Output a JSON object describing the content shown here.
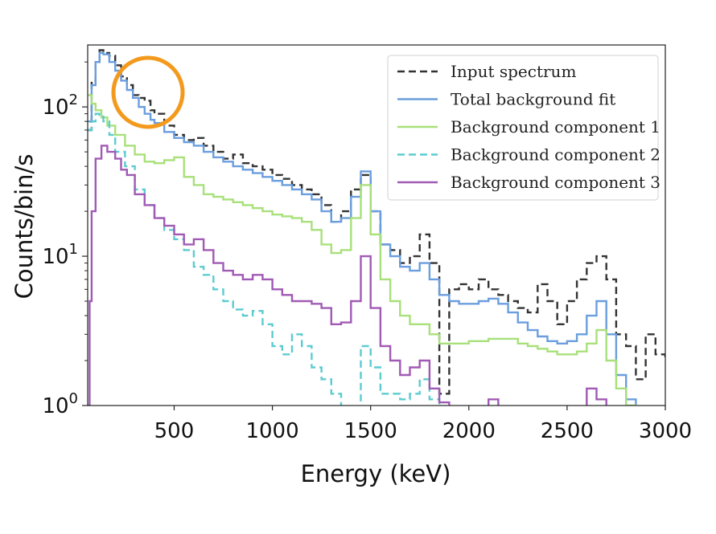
{
  "chart_data": {
    "type": "line",
    "title": "",
    "xlabel": "Energy (keV)",
    "ylabel": "Counts/bin/s",
    "xlim": [
      60,
      3000
    ],
    "ylim": [
      1,
      260
    ],
    "yscale": "log",
    "grid": false,
    "legend_placement": "top-right",
    "x_ticks": [
      500,
      1000,
      1500,
      2000,
      2500,
      3000
    ],
    "x_tick_labels": [
      "500",
      "1000",
      "1500",
      "2000",
      "2500",
      "3000"
    ],
    "y_ticks": [
      1,
      10,
      100
    ],
    "y_tick_labels": [
      {
        "base": "10",
        "exp": "0"
      },
      {
        "base": "10",
        "exp": "1"
      },
      {
        "base": "10",
        "exp": "2"
      }
    ],
    "annotation": {
      "type": "circle",
      "color": "#f39a1d",
      "marks_x_range": [
        250,
        400
      ]
    },
    "series": [
      {
        "name": "Input spectrum",
        "color": "#333333",
        "dash": "dashed",
        "points": [
          [
            60,
            70
          ],
          [
            80,
            150
          ],
          [
            100,
            200
          ],
          [
            120,
            240
          ],
          [
            140,
            230
          ],
          [
            170,
            220
          ],
          [
            200,
            190
          ],
          [
            230,
            160
          ],
          [
            260,
            140
          ],
          [
            290,
            120
          ],
          [
            320,
            115
          ],
          [
            350,
            110
          ],
          [
            380,
            95
          ],
          [
            400,
            90
          ],
          [
            450,
            75
          ],
          [
            500,
            65
          ],
          [
            550,
            60
          ],
          [
            600,
            62
          ],
          [
            650,
            55
          ],
          [
            700,
            50
          ],
          [
            750,
            45
          ],
          [
            800,
            48
          ],
          [
            850,
            42
          ],
          [
            900,
            40
          ],
          [
            950,
            38
          ],
          [
            1000,
            35
          ],
          [
            1050,
            33
          ],
          [
            1100,
            30
          ],
          [
            1150,
            28
          ],
          [
            1200,
            26
          ],
          [
            1250,
            22
          ],
          [
            1300,
            17
          ],
          [
            1350,
            20
          ],
          [
            1400,
            28
          ],
          [
            1450,
            35
          ],
          [
            1500,
            20
          ],
          [
            1550,
            12
          ],
          [
            1600,
            11
          ],
          [
            1650,
            9
          ],
          [
            1700,
            10
          ],
          [
            1750,
            14
          ],
          [
            1800,
            9
          ],
          [
            1850,
            1.2
          ],
          [
            1900,
            6
          ],
          [
            1950,
            6.5
          ],
          [
            2000,
            6
          ],
          [
            2050,
            7
          ],
          [
            2100,
            6
          ],
          [
            2150,
            5.5
          ],
          [
            2200,
            5
          ],
          [
            2250,
            4.5
          ],
          [
            2300,
            4.2
          ],
          [
            2350,
            6.5
          ],
          [
            2400,
            5
          ],
          [
            2450,
            3.5
          ],
          [
            2500,
            5
          ],
          [
            2550,
            7
          ],
          [
            2600,
            9
          ],
          [
            2650,
            10
          ],
          [
            2700,
            7
          ],
          [
            2750,
            3
          ],
          [
            2800,
            2.5
          ],
          [
            2850,
            1.5
          ],
          [
            2900,
            3
          ],
          [
            2950,
            2.2
          ],
          [
            3000,
            2
          ]
        ]
      },
      {
        "name": "Total background fit",
        "color": "#6a9ede",
        "dash": "solid",
        "points": [
          [
            60,
            80
          ],
          [
            80,
            140
          ],
          [
            100,
            200
          ],
          [
            120,
            230
          ],
          [
            140,
            225
          ],
          [
            170,
            200
          ],
          [
            200,
            175
          ],
          [
            230,
            150
          ],
          [
            260,
            130
          ],
          [
            290,
            115
          ],
          [
            320,
            100
          ],
          [
            350,
            90
          ],
          [
            380,
            82
          ],
          [
            400,
            78
          ],
          [
            450,
            68
          ],
          [
            500,
            62
          ],
          [
            550,
            58
          ],
          [
            600,
            55
          ],
          [
            650,
            50
          ],
          [
            700,
            46
          ],
          [
            750,
            43
          ],
          [
            800,
            40
          ],
          [
            850,
            38
          ],
          [
            900,
            36
          ],
          [
            950,
            34
          ],
          [
            1000,
            32
          ],
          [
            1050,
            30
          ],
          [
            1100,
            28
          ],
          [
            1150,
            26
          ],
          [
            1200,
            24
          ],
          [
            1250,
            20
          ],
          [
            1300,
            17
          ],
          [
            1350,
            18
          ],
          [
            1400,
            25
          ],
          [
            1450,
            37
          ],
          [
            1500,
            20
          ],
          [
            1550,
            12
          ],
          [
            1600,
            10
          ],
          [
            1650,
            8.5
          ],
          [
            1700,
            8
          ],
          [
            1750,
            9
          ],
          [
            1800,
            7
          ],
          [
            1850,
            5.5
          ],
          [
            1900,
            5
          ],
          [
            1950,
            4.8
          ],
          [
            2000,
            4.8
          ],
          [
            2050,
            5
          ],
          [
            2100,
            5.2
          ],
          [
            2150,
            4.8
          ],
          [
            2200,
            4.2
          ],
          [
            2250,
            3.6
          ],
          [
            2300,
            3.2
          ],
          [
            2350,
            2.9
          ],
          [
            2400,
            2.7
          ],
          [
            2450,
            2.6
          ],
          [
            2500,
            2.7
          ],
          [
            2550,
            3
          ],
          [
            2600,
            4
          ],
          [
            2650,
            5
          ],
          [
            2700,
            3
          ],
          [
            2750,
            1.6
          ],
          [
            2800,
            1.1
          ],
          [
            2850,
            0.95
          ]
        ]
      },
      {
        "name": "Background component 1",
        "color": "#a8e07a",
        "dash": "solid",
        "points": [
          [
            60,
            120
          ],
          [
            80,
            105
          ],
          [
            100,
            95
          ],
          [
            130,
            85
          ],
          [
            160,
            75
          ],
          [
            200,
            65
          ],
          [
            250,
            55
          ],
          [
            300,
            48
          ],
          [
            350,
            43
          ],
          [
            400,
            42
          ],
          [
            450,
            44
          ],
          [
            500,
            46
          ],
          [
            550,
            34
          ],
          [
            600,
            30
          ],
          [
            650,
            26
          ],
          [
            700,
            25
          ],
          [
            750,
            24
          ],
          [
            800,
            23
          ],
          [
            850,
            22
          ],
          [
            900,
            21
          ],
          [
            950,
            20
          ],
          [
            1000,
            19
          ],
          [
            1050,
            18.5
          ],
          [
            1100,
            18
          ],
          [
            1150,
            17
          ],
          [
            1200,
            15
          ],
          [
            1250,
            12
          ],
          [
            1300,
            10.5
          ],
          [
            1350,
            11
          ],
          [
            1400,
            18
          ],
          [
            1450,
            30
          ],
          [
            1500,
            14
          ],
          [
            1550,
            7
          ],
          [
            1600,
            5
          ],
          [
            1650,
            4
          ],
          [
            1700,
            3.5
          ],
          [
            1750,
            3.5
          ],
          [
            1800,
            3
          ],
          [
            1850,
            2.6
          ],
          [
            1900,
            2.6
          ],
          [
            1950,
            2.6
          ],
          [
            2000,
            2.7
          ],
          [
            2050,
            2.7
          ],
          [
            2100,
            2.8
          ],
          [
            2150,
            2.8
          ],
          [
            2200,
            2.8
          ],
          [
            2250,
            2.6
          ],
          [
            2300,
            2.5
          ],
          [
            2350,
            2.4
          ],
          [
            2400,
            2.3
          ],
          [
            2450,
            2.2
          ],
          [
            2500,
            2.2
          ],
          [
            2550,
            2.3
          ],
          [
            2600,
            2.6
          ],
          [
            2650,
            3.2
          ],
          [
            2700,
            2
          ],
          [
            2750,
            1.3
          ],
          [
            2800,
            1
          ],
          [
            2850,
            0.9
          ]
        ]
      },
      {
        "name": "Background component 2",
        "color": "#5ccbd0",
        "dash": "dashed",
        "points": [
          [
            60,
            70
          ],
          [
            80,
            80
          ],
          [
            100,
            90
          ],
          [
            120,
            88
          ],
          [
            140,
            80
          ],
          [
            170,
            65
          ],
          [
            200,
            50
          ],
          [
            250,
            40
          ],
          [
            300,
            28
          ],
          [
            350,
            22
          ],
          [
            400,
            18
          ],
          [
            450,
            15
          ],
          [
            500,
            13
          ],
          [
            550,
            11
          ],
          [
            600,
            8.5
          ],
          [
            650,
            7.5
          ],
          [
            700,
            6
          ],
          [
            750,
            5
          ],
          [
            800,
            4.4
          ],
          [
            850,
            4
          ],
          [
            900,
            4.3
          ],
          [
            950,
            3.5
          ],
          [
            1000,
            2.5
          ],
          [
            1050,
            2.2
          ],
          [
            1100,
            3
          ],
          [
            1150,
            2.5
          ],
          [
            1200,
            1.8
          ],
          [
            1250,
            1.5
          ],
          [
            1300,
            1.2
          ],
          [
            1350,
            0.9
          ],
          [
            1400,
            0.8
          ],
          [
            1450,
            2.5
          ],
          [
            1500,
            1.8
          ],
          [
            1550,
            1.2
          ],
          [
            1600,
            1.2
          ],
          [
            1650,
            1.1
          ],
          [
            1700,
            1.2
          ],
          [
            1750,
            1.5
          ],
          [
            1800,
            1.1
          ],
          [
            1850,
            0.8
          ]
        ]
      },
      {
        "name": "Background component 3",
        "color": "#a05ab4",
        "dash": "solid",
        "points": [
          [
            60,
            1
          ],
          [
            70,
            5
          ],
          [
            80,
            20
          ],
          [
            100,
            45
          ],
          [
            130,
            55
          ],
          [
            160,
            50
          ],
          [
            200,
            45
          ],
          [
            230,
            38
          ],
          [
            260,
            35
          ],
          [
            300,
            26
          ],
          [
            350,
            22
          ],
          [
            400,
            18
          ],
          [
            450,
            16
          ],
          [
            500,
            14
          ],
          [
            550,
            12
          ],
          [
            600,
            13
          ],
          [
            650,
            11
          ],
          [
            700,
            9
          ],
          [
            750,
            8
          ],
          [
            800,
            7.5
          ],
          [
            850,
            7
          ],
          [
            900,
            7.5
          ],
          [
            950,
            7
          ],
          [
            1000,
            6
          ],
          [
            1050,
            5.5
          ],
          [
            1100,
            5
          ],
          [
            1150,
            5
          ],
          [
            1200,
            4.8
          ],
          [
            1250,
            4.5
          ],
          [
            1300,
            3.5
          ],
          [
            1350,
            3.6
          ],
          [
            1400,
            5
          ],
          [
            1450,
            10
          ],
          [
            1500,
            4.5
          ],
          [
            1550,
            2.5
          ],
          [
            1600,
            2
          ],
          [
            1650,
            1.6
          ],
          [
            1700,
            1.8
          ],
          [
            1750,
            2
          ],
          [
            1800,
            1.3
          ],
          [
            1850,
            1.05
          ],
          [
            1900,
            0.9
          ],
          [
            2050,
            0.9
          ],
          [
            2100,
            1.1
          ],
          [
            2150,
            0.9
          ],
          [
            2550,
            0.9
          ],
          [
            2600,
            1.3
          ],
          [
            2650,
            1.1
          ],
          [
            2700,
            0.9
          ]
        ]
      }
    ]
  }
}
